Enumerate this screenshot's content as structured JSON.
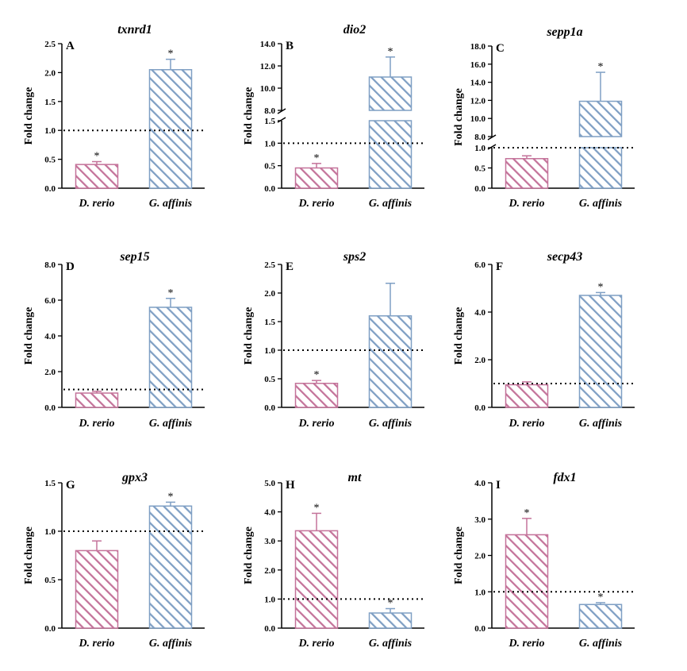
{
  "colors": {
    "pink": "#c4739a",
    "blue": "#7f9fc4",
    "axis": "#000000",
    "ref": "#000000"
  },
  "ylabel": "Fold change",
  "categories": [
    "D. rerio",
    "G. affinis"
  ],
  "chart_data": [
    {
      "type": "bar",
      "panel": "A",
      "title": "txnrd1",
      "ylabel": "Fold change",
      "categories": [
        "D. rerio",
        "G. affinis"
      ],
      "values": [
        0.41,
        2.05
      ],
      "errors": [
        0.05,
        0.18
      ],
      "significant": [
        true,
        true
      ],
      "ylim": [
        0,
        2.5
      ],
      "yticks": [
        0,
        0.5,
        1.0,
        1.5,
        2.0,
        2.5
      ],
      "ytick_labels": [
        "0.0",
        "0.5",
        "1.0",
        "1.5",
        "2.0",
        "2.5"
      ],
      "reference_line": 1.0
    },
    {
      "type": "bar",
      "panel": "B",
      "title": "dio2",
      "ylabel": "Fold change",
      "categories": [
        "D. rerio",
        "G. affinis"
      ],
      "values": [
        0.45,
        11.0
      ],
      "errors": [
        0.1,
        1.8
      ],
      "significant": [
        true,
        true
      ],
      "ylim": [
        0,
        14.0
      ],
      "axis_break": {
        "lower": [
          0,
          1.5
        ],
        "upper": [
          8.0,
          14.0
        ]
      },
      "yticks": [
        0,
        0.5,
        1.0,
        1.5,
        8.0,
        10.0,
        12.0,
        14.0
      ],
      "ytick_labels": [
        "0.0",
        "0.5",
        "1.0",
        "1.5",
        "8.0",
        "10.0",
        "12.0",
        "14.0"
      ],
      "reference_line": 1.0
    },
    {
      "type": "bar",
      "panel": "C",
      "title": "sepp1a",
      "ylabel": "Fold change",
      "categories": [
        "D. rerio",
        "G. affinis"
      ],
      "values": [
        0.73,
        11.9
      ],
      "errors": [
        0.07,
        3.2
      ],
      "significant": [
        false,
        true
      ],
      "ylim": [
        0,
        18.0
      ],
      "axis_break": {
        "lower": [
          0,
          1.0
        ],
        "upper": [
          8.0,
          18.0
        ]
      },
      "yticks": [
        0,
        0.5,
        1.0,
        8.0,
        10.0,
        12.0,
        14.0,
        16.0,
        18.0
      ],
      "ytick_labels": [
        "0.0",
        "0.5",
        "1.0",
        "8.0",
        "10.0",
        "12.0",
        "14.0",
        "16.0",
        "18.0"
      ],
      "reference_line": 1.0
    },
    {
      "type": "bar",
      "panel": "D",
      "title": "sep15",
      "ylabel": "Fold change",
      "categories": [
        "D. rerio",
        "G. affinis"
      ],
      "values": [
        0.8,
        5.6
      ],
      "errors": [
        0.1,
        0.5
      ],
      "significant": [
        false,
        true
      ],
      "ylim": [
        0,
        8.0
      ],
      "yticks": [
        0,
        2.0,
        4.0,
        6.0,
        8.0
      ],
      "ytick_labels": [
        "0.0",
        "2.0",
        "4.0",
        "6.0",
        "8.0"
      ],
      "reference_line": 1.0
    },
    {
      "type": "bar",
      "panel": "E",
      "title": "sps2",
      "ylabel": "Fold change",
      "categories": [
        "D. rerio",
        "G. affinis"
      ],
      "values": [
        0.42,
        1.6
      ],
      "errors": [
        0.05,
        0.57
      ],
      "significant": [
        true,
        false
      ],
      "ylim": [
        0,
        2.5
      ],
      "yticks": [
        0,
        0.5,
        1.0,
        1.5,
        2.0,
        2.5
      ],
      "ytick_labels": [
        "0.0",
        "0.5",
        "1.0",
        "1.5",
        "2.0",
        "2.5"
      ],
      "reference_line": 1.0
    },
    {
      "type": "bar",
      "panel": "F",
      "title": "secp43",
      "ylabel": "Fold change",
      "categories": [
        "D. rerio",
        "G. affinis"
      ],
      "values": [
        0.95,
        4.7
      ],
      "errors": [
        0.12,
        0.12
      ],
      "significant": [
        false,
        true
      ],
      "ylim": [
        0,
        6.0
      ],
      "yticks": [
        0,
        2.0,
        4.0,
        6.0
      ],
      "ytick_labels": [
        "0.0",
        "2.0",
        "4.0",
        "6.0"
      ],
      "reference_line": 1.0
    },
    {
      "type": "bar",
      "panel": "G",
      "title": "gpx3",
      "ylabel": "Fold change",
      "categories": [
        "D. rerio",
        "G. affinis"
      ],
      "values": [
        0.8,
        1.26
      ],
      "errors": [
        0.1,
        0.04
      ],
      "significant": [
        false,
        true
      ],
      "ylim": [
        0,
        1.5
      ],
      "yticks": [
        0,
        0.5,
        1.0,
        1.5
      ],
      "ytick_labels": [
        "0.0",
        "0.5",
        "1.0",
        "1.5"
      ],
      "reference_line": 1.0
    },
    {
      "type": "bar",
      "panel": "H",
      "title": "mt",
      "ylabel": "Fold change",
      "categories": [
        "D. rerio",
        "G. affinis"
      ],
      "values": [
        3.35,
        0.52
      ],
      "errors": [
        0.6,
        0.15
      ],
      "significant": [
        true,
        true
      ],
      "ylim": [
        0,
        5.0
      ],
      "yticks": [
        0,
        1.0,
        2.0,
        3.0,
        4.0,
        5.0
      ],
      "ytick_labels": [
        "0.0",
        "1.0",
        "2.0",
        "3.0",
        "4.0",
        "5.0"
      ],
      "reference_line": 1.0
    },
    {
      "type": "bar",
      "panel": "I",
      "title": "fdx1",
      "ylabel": "Fold change",
      "categories": [
        "D. rerio",
        "G. affinis"
      ],
      "values": [
        2.57,
        0.65
      ],
      "errors": [
        0.45,
        0.05
      ],
      "significant": [
        true,
        true
      ],
      "ylim": [
        0,
        4.0
      ],
      "yticks": [
        0,
        1.0,
        2.0,
        3.0,
        4.0
      ],
      "ytick_labels": [
        "0.0",
        "1.0",
        "2.0",
        "3.0",
        "4.0"
      ],
      "reference_line": 1.0
    }
  ]
}
